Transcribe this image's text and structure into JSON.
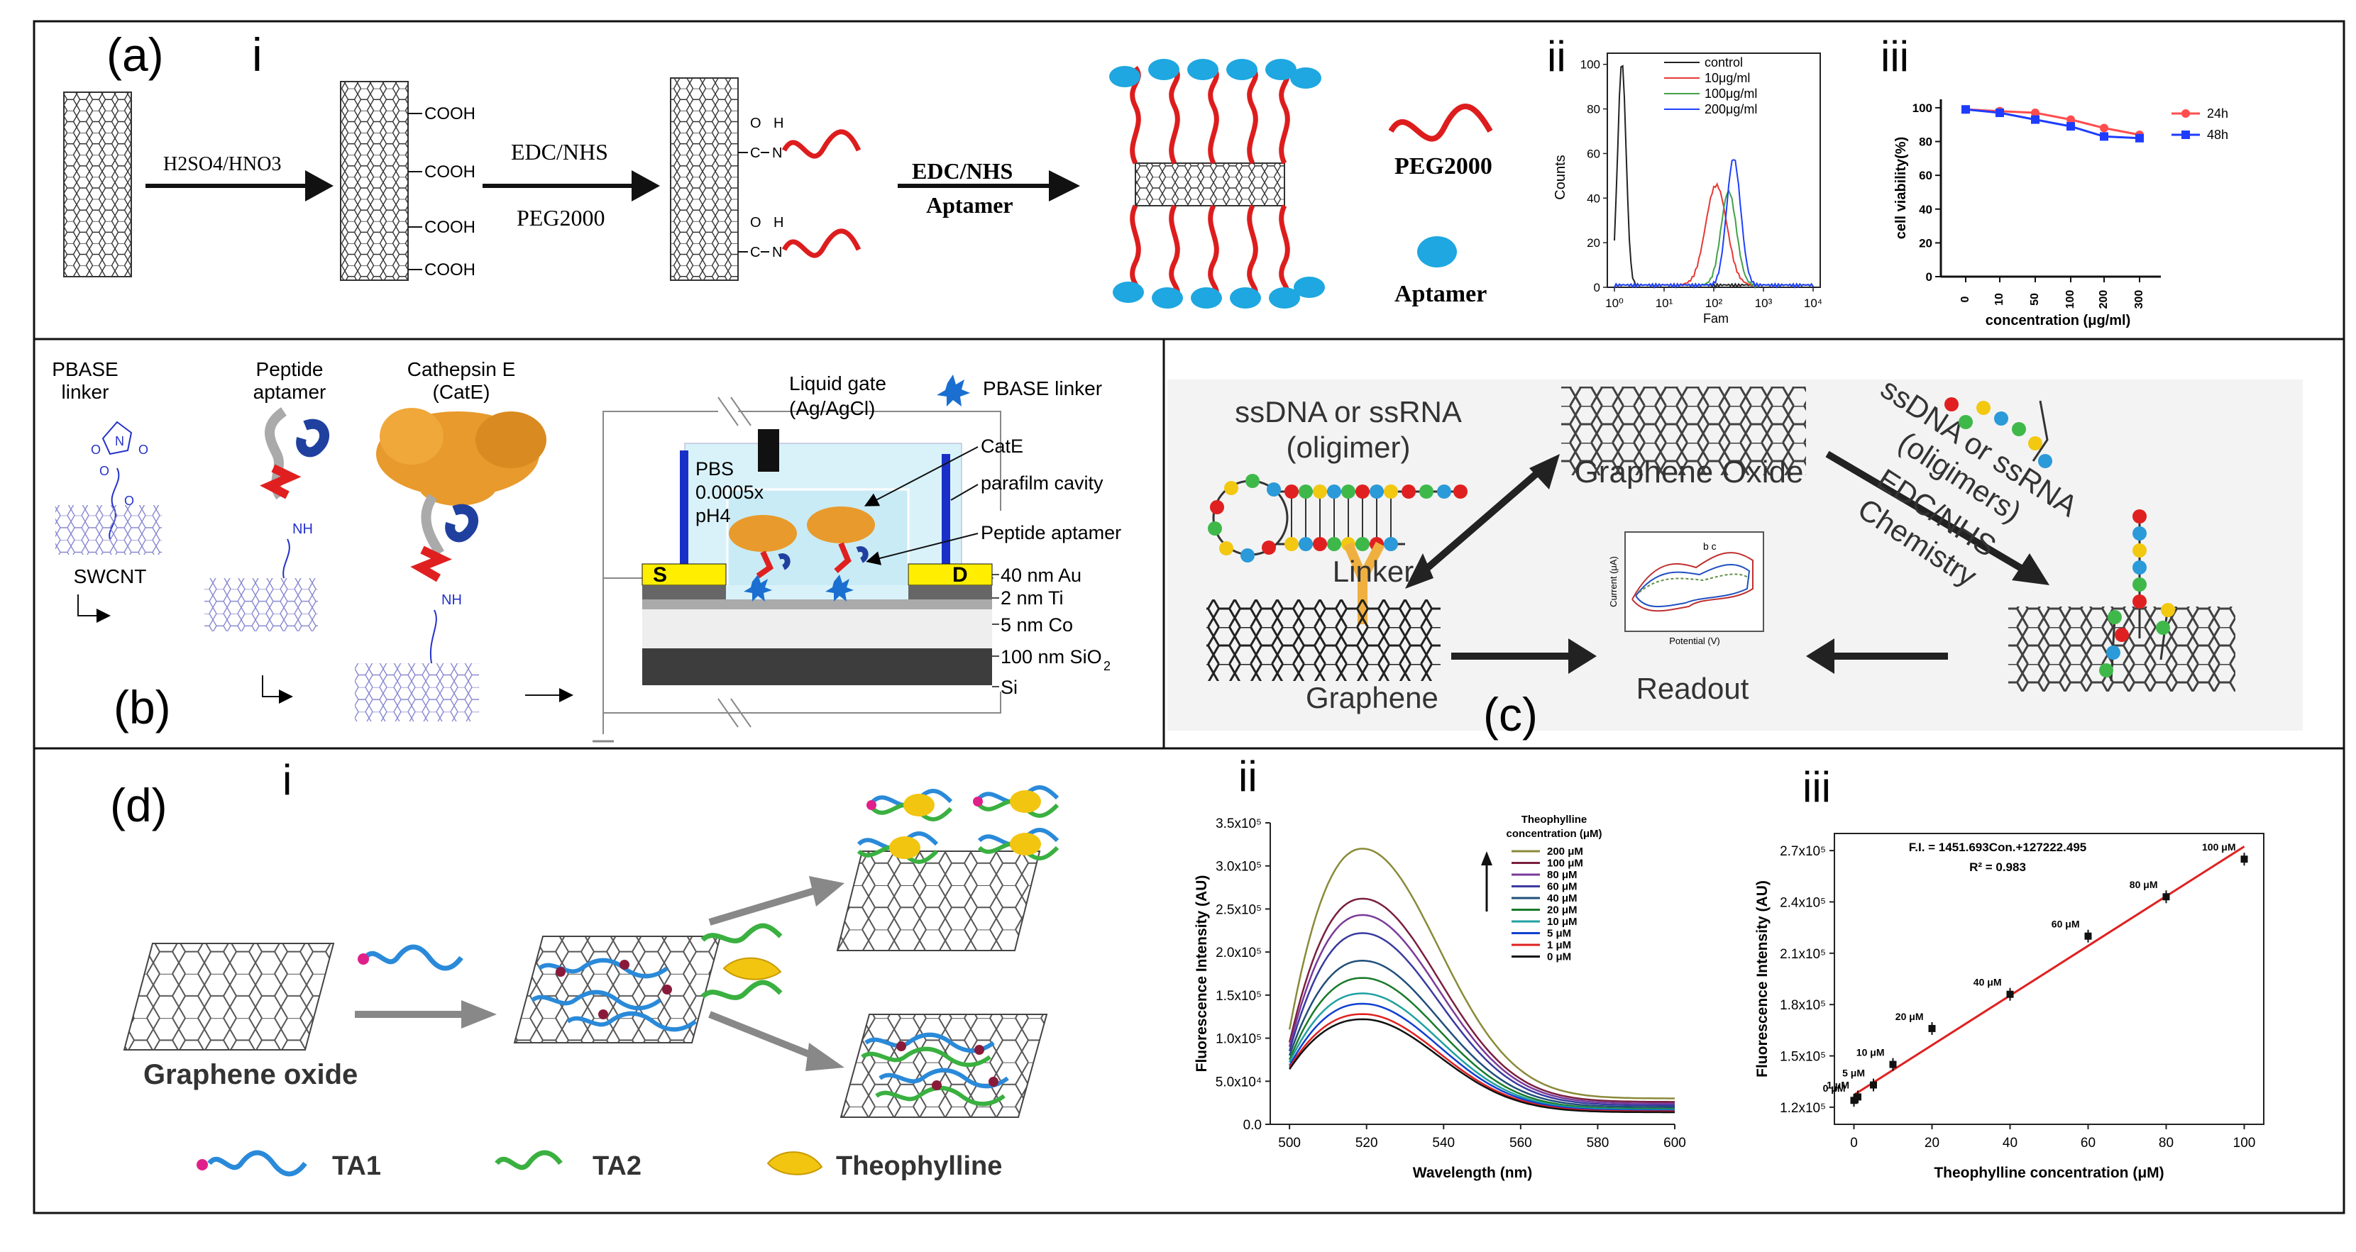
{
  "panel_a": {
    "label": "(a)",
    "sub_i": "i",
    "sub_ii": "ii",
    "sub_iii": "iii",
    "reagent1": "H2SO4/HNO3",
    "cooh": [
      "COOH",
      "COOH",
      "COOH",
      "COOH"
    ],
    "reagent2_top": "EDC/NHS",
    "reagent2_bottom": "PEG2000",
    "amide_o": "O",
    "amide_h": "H",
    "amide_c": "C",
    "amide_n": "N",
    "reagent3_top": "EDC/NHS",
    "reagent3_bottom": "Aptamer",
    "legend_peg": "PEG2000",
    "legend_aptamer": "Aptamer",
    "flow": {
      "ylabel": "Counts",
      "xlabel": "Fam",
      "yticks": [
        "0",
        "20",
        "40",
        "60",
        "80",
        "100"
      ],
      "xticks": [
        "10⁰",
        "10¹",
        "10²",
        "10³",
        "10⁴"
      ],
      "legend": [
        {
          "name": "control",
          "color": "#222222"
        },
        {
          "name": "10μg/ml",
          "color": "#e53935"
        },
        {
          "name": "100μg/ml",
          "color": "#43a047"
        },
        {
          "name": "200μg/ml",
          "color": "#1e40ff"
        }
      ]
    },
    "viability": {
      "ylabel": "cell viability(%)",
      "xlabel": "concentration (μg/ml)",
      "yticks": [
        "0",
        "20",
        "40",
        "60",
        "80",
        "100"
      ],
      "xticks": [
        "0",
        "10",
        "50",
        "100",
        "200",
        "300"
      ],
      "series": [
        {
          "name": "24h",
          "color": "#ff4d4d",
          "values": [
            99,
            98,
            97,
            93,
            88,
            84
          ]
        },
        {
          "name": "48h",
          "color": "#1e3cff",
          "values": [
            99,
            97,
            93,
            89,
            83,
            82
          ]
        }
      ]
    }
  },
  "panel_b": {
    "label": "(b)",
    "pbase": [
      "PBASE",
      "linker"
    ],
    "peptide": [
      "Peptide",
      "aptamer"
    ],
    "cathepsin": [
      "Cathepsin E",
      "(CatE)"
    ],
    "swcnt": "SWCNT",
    "nh": "NH",
    "atoms": [
      "O",
      "N",
      "O",
      "O",
      "O"
    ],
    "liquid_gate": [
      "Liquid gate",
      "(Ag/AgCl)"
    ],
    "pbase_legend": "PBASE linker",
    "pbs": [
      "PBS",
      "0.0005x",
      "pH4"
    ],
    "catE": "CatE",
    "parafilm": "parafilm cavity",
    "peptide_aptamer": "Peptide aptamer",
    "source": "S",
    "drain": "D",
    "layers": [
      "40 nm Au",
      "2 nm Ti",
      "5 nm Co",
      "100 nm SiO",
      "Si"
    ],
    "sio2_sub": "2"
  },
  "panel_c": {
    "label": "(c)",
    "ssdna": [
      "ssDNA or ssRNA",
      "(oligimer)"
    ],
    "graphene_oxide": "Graphene Oxide",
    "rotated": [
      "ssDNA or ssRNA",
      "(oligimers)",
      "EDC/NHS",
      "Chemistry"
    ],
    "linker": "Linker",
    "graphene": "Graphene",
    "readout": "Readout",
    "cv": {
      "ylabel": "Current (μA)",
      "xlabel": "Potential (V)",
      "peaks": "b  c"
    }
  },
  "panel_d": {
    "label": "(d)",
    "sub_i": "i",
    "sub_ii": "ii",
    "sub_iii": "iii",
    "graphene_oxide": "Graphene oxide",
    "legend": [
      "TA1",
      "TA2",
      "Theophylline"
    ]
  },
  "chart_data": [
    {
      "type": "line",
      "title": "",
      "xlabel": "Wavelength (nm)",
      "ylabel": "Fluorescence Intensity (AU)",
      "xlim": [
        495,
        600
      ],
      "ylim": [
        0,
        350000
      ],
      "xticks": [
        500,
        520,
        540,
        560,
        580,
        600
      ],
      "yticks_labels": [
        "0.0",
        "5.0x10⁴",
        "1.0x10⁵",
        "1.5x10⁵",
        "2.0x10⁵",
        "2.5x10⁵",
        "3.0x10⁵",
        "3.5x10⁵"
      ],
      "legend_title": [
        "Theophylline",
        "concentration (μM)"
      ],
      "peak_x": 519,
      "series": [
        {
          "name": "200 μM",
          "color": "#8a8a3a",
          "peak": 320000,
          "start": 110000,
          "end": 30000
        },
        {
          "name": "100 μM",
          "color": "#7a1f3f",
          "peak": 262000,
          "start": 95000,
          "end": 26000
        },
        {
          "name": "80 μM",
          "color": "#7a3a9a",
          "peak": 243000,
          "start": 90000,
          "end": 24000
        },
        {
          "name": "60 μM",
          "color": "#3a3aa0",
          "peak": 222000,
          "start": 85000,
          "end": 22000
        },
        {
          "name": "40 μM",
          "color": "#1f4f7a",
          "peak": 190000,
          "start": 80000,
          "end": 20000
        },
        {
          "name": "20 μM",
          "color": "#1a7a2a",
          "peak": 170000,
          "start": 75000,
          "end": 18000
        },
        {
          "name": "10 μM",
          "color": "#20a0a0",
          "peak": 152000,
          "start": 72000,
          "end": 17000
        },
        {
          "name": "5 μM",
          "color": "#1040d0",
          "peak": 140000,
          "start": 68000,
          "end": 16000
        },
        {
          "name": "1 μM",
          "color": "#e02020",
          "peak": 128000,
          "start": 66000,
          "end": 15000
        },
        {
          "name": "0 μM",
          "color": "#111111",
          "peak": 122000,
          "start": 64000,
          "end": 14000
        }
      ]
    },
    {
      "type": "scatter",
      "title": "",
      "xlabel": "Theophylline concentration (μM)",
      "ylabel": "Fluorescence Intensity (AU)",
      "xlim": [
        -5,
        105
      ],
      "ylim": [
        110000,
        280000
      ],
      "xticks": [
        0,
        20,
        40,
        60,
        80,
        100
      ],
      "yticks_values": [
        120000,
        150000,
        180000,
        210000,
        240000,
        270000
      ],
      "yticks_labels": [
        "1.2x10⁵",
        "1.5x10⁵",
        "1.8x10⁵",
        "2.1x10⁵",
        "2.4x10⁵",
        "2.7x10⁵"
      ],
      "equation": "F.I. = 1451.693Con.+127222.495",
      "r2": "R² = 0.983",
      "fit": {
        "slope": 1451.693,
        "intercept": 127222.495
      },
      "points": [
        {
          "x": 0,
          "y": 124000,
          "label": "0 μM"
        },
        {
          "x": 1,
          "y": 126000,
          "label": "1 μM"
        },
        {
          "x": 5,
          "y": 133000,
          "label": "5 μM"
        },
        {
          "x": 10,
          "y": 145000,
          "label": "10 μM"
        },
        {
          "x": 20,
          "y": 166000,
          "label": "20 μM"
        },
        {
          "x": 40,
          "y": 186000,
          "label": "40 μM"
        },
        {
          "x": 60,
          "y": 220000,
          "label": "60 μM"
        },
        {
          "x": 80,
          "y": 243000,
          "label": "80 μM"
        },
        {
          "x": 100,
          "y": 265000,
          "label": "100 μM"
        }
      ]
    }
  ]
}
